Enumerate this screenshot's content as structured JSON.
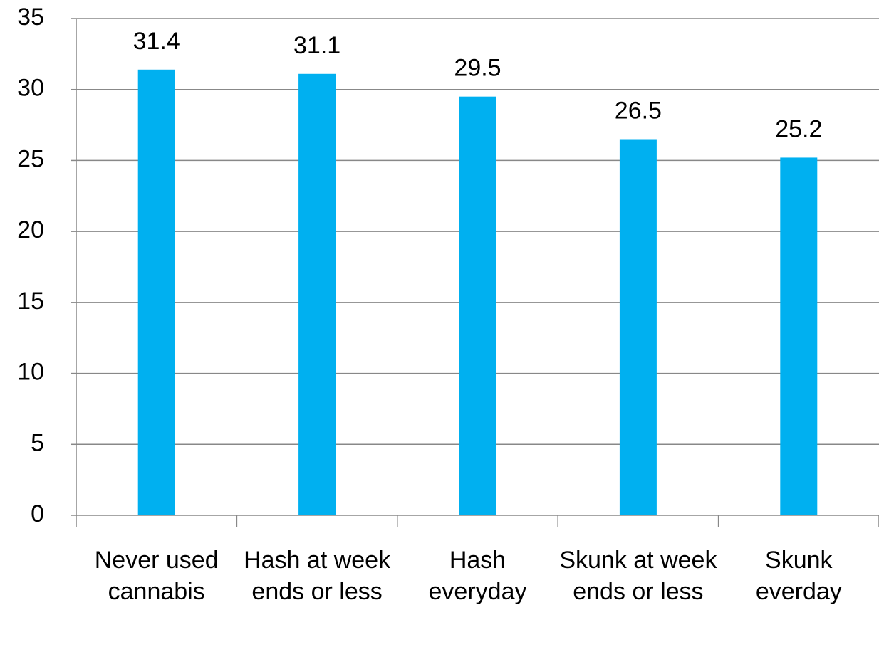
{
  "chart_data": {
    "type": "bar",
    "categories": [
      "Never used cannabis",
      "Hash at week ends or less",
      "Hash everyday",
      "Skunk at week ends or less",
      "Skunk everday"
    ],
    "values": [
      31.4,
      31.1,
      29.5,
      26.5,
      25.2
    ],
    "color": "#00b0f0",
    "ylim": [
      0,
      35
    ],
    "yticks": [
      0,
      5,
      10,
      15,
      20,
      25,
      30,
      35
    ],
    "grid": true
  }
}
